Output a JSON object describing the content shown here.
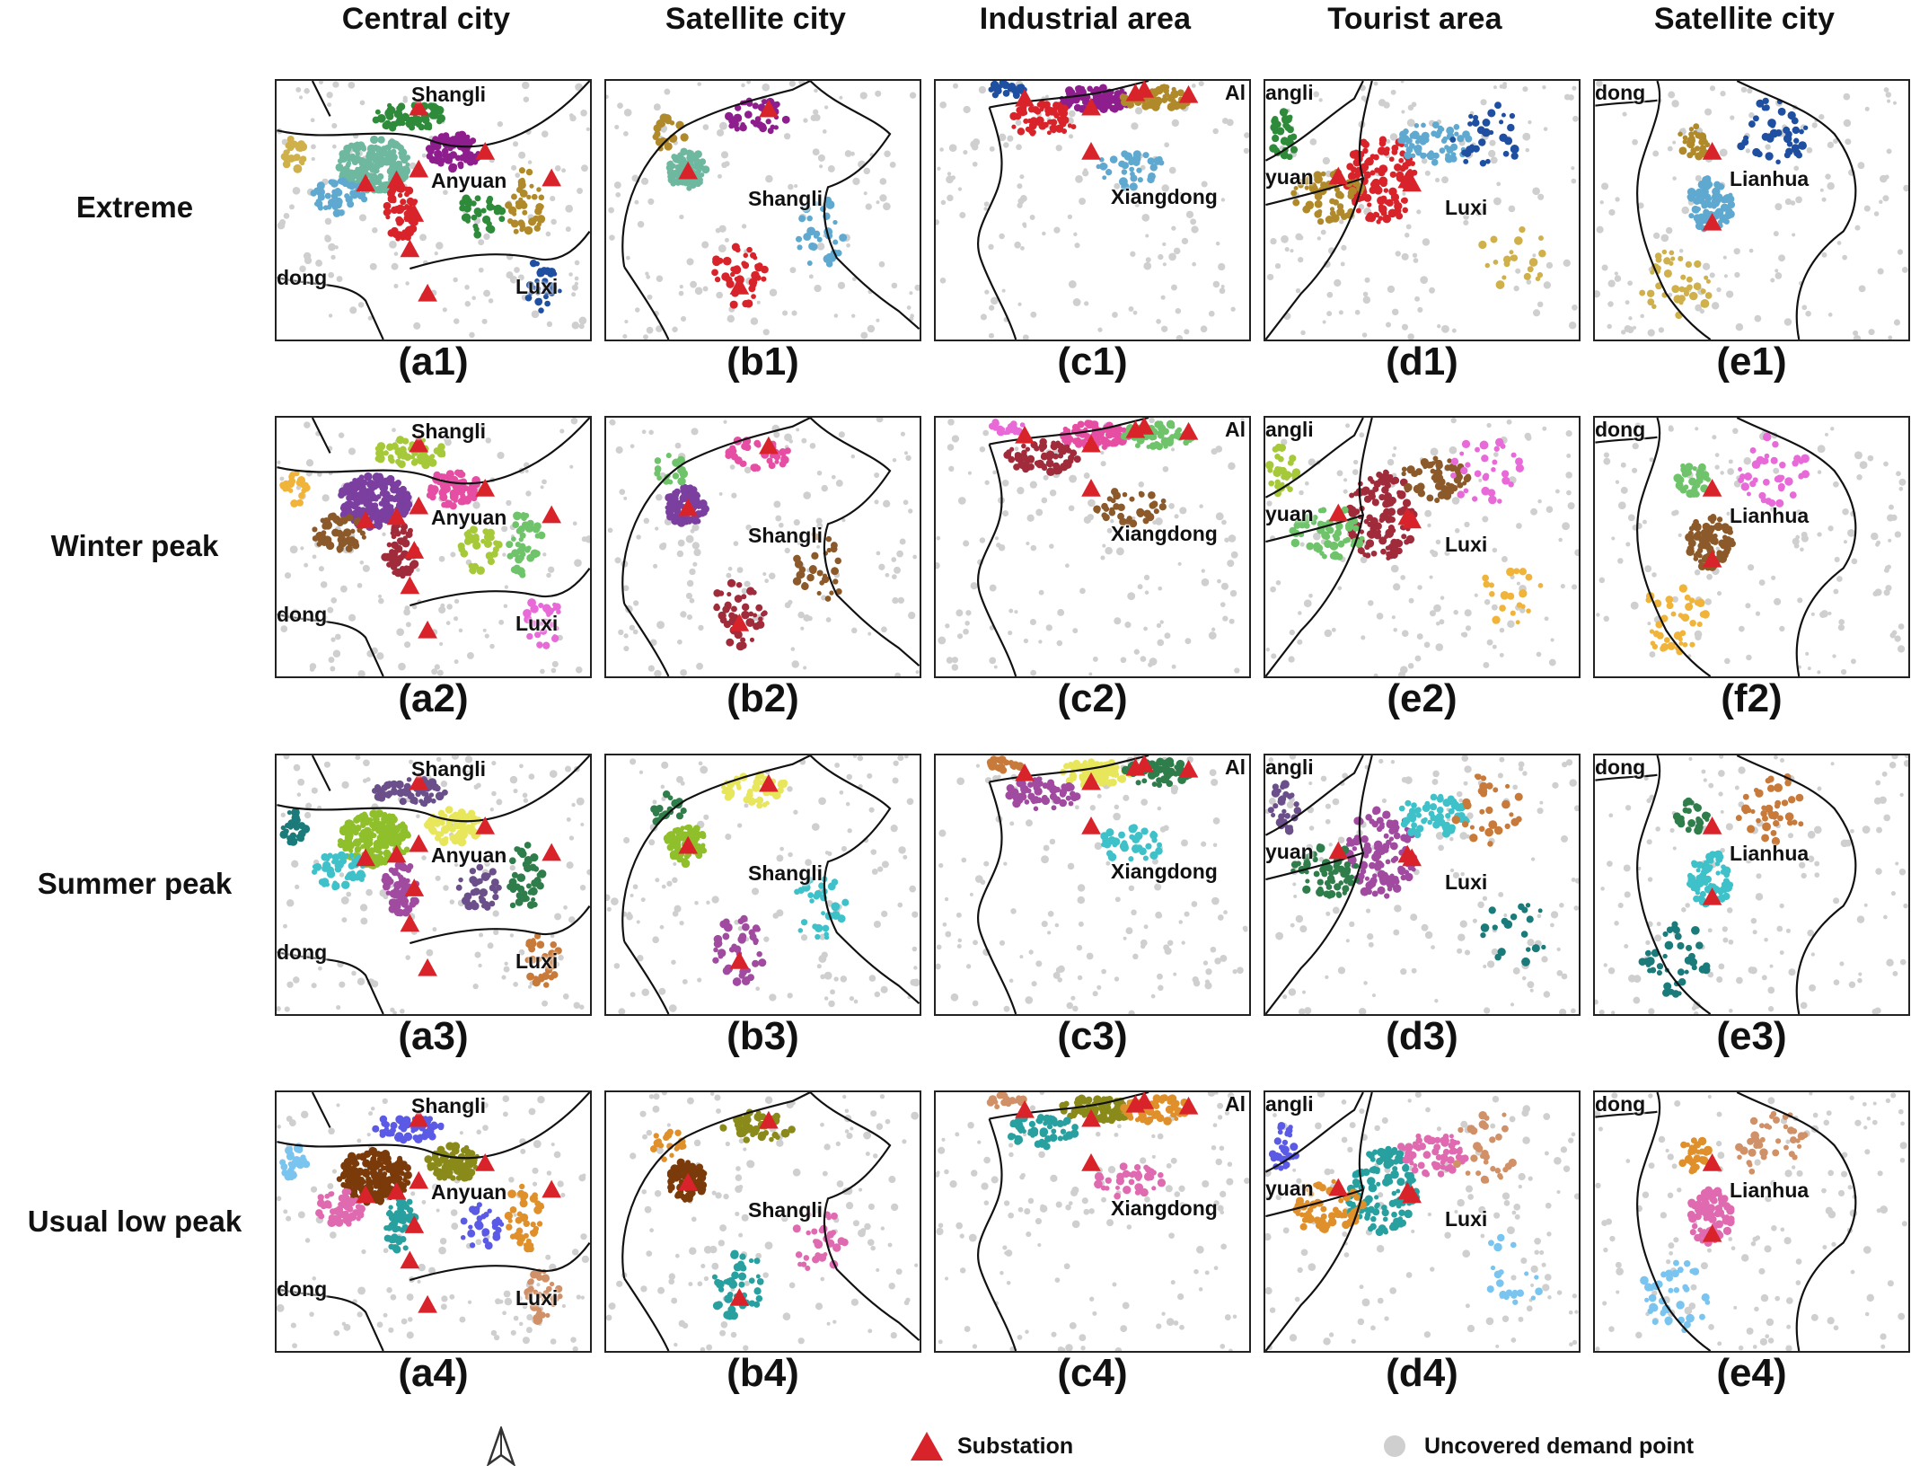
{
  "columns": [
    "Central city",
    "Satellite city",
    "Industrial area",
    "Tourist area",
    "Satellite city"
  ],
  "rows": [
    "Extreme",
    "Winter peak",
    "Summer peak",
    "Usual low peak"
  ],
  "captions": [
    [
      "(a1)",
      "(b1)",
      "(c1)",
      "(d1)",
      "(e1)"
    ],
    [
      "(a2)",
      "(b2)",
      "(c2)",
      "(e2)",
      "(f2)"
    ],
    [
      "(a3)",
      "(b3)",
      "(c3)",
      "(d3)",
      "(e3)"
    ],
    [
      "(a4)",
      "(b4)",
      "(c4)",
      "(d4)",
      "(e4)"
    ]
  ],
  "place_labels": {
    "central": [
      "Shangli",
      "Anyuan",
      "dong",
      "Luxi"
    ],
    "satellite": [
      "Shangli"
    ],
    "industrial": [
      "Xiangdong",
      "Al"
    ],
    "tourist": [
      "angli",
      "yuan",
      "Luxi"
    ],
    "satellite2": [
      "dong",
      "Lianhua"
    ]
  },
  "legend": {
    "north_arrow": "north-arrow-icon",
    "substation": "Substation",
    "uncovered": "Uncovered demand point"
  },
  "colors": {
    "substation": "#d9232b",
    "uncovered": "#cfcfcf",
    "boundary": "#111111",
    "palettes": [
      [
        "#2e8b3a",
        "#6fb8a0",
        "#8e1e8e",
        "#d9232b",
        "#5fa9d0",
        "#b08a2a",
        "#1f4fa0",
        "#cfb04a"
      ],
      [
        "#a6c93a",
        "#7b3fa0",
        "#e64ea3",
        "#a02b3a",
        "#8c5a2a",
        "#6fc36a",
        "#e86ad8",
        "#f0b43a"
      ],
      [
        "#6b4f8a",
        "#8fbf2a",
        "#e8e65a",
        "#a04aa0",
        "#3ec1c9",
        "#2e7d4a",
        "#c87a3a",
        "#1b7a7a"
      ],
      [
        "#5a5ae6",
        "#7a3a0a",
        "#8a8a1a",
        "#28a0a0",
        "#e06ab0",
        "#e0902a",
        "#d09068",
        "#7ac4f0"
      ]
    ]
  }
}
